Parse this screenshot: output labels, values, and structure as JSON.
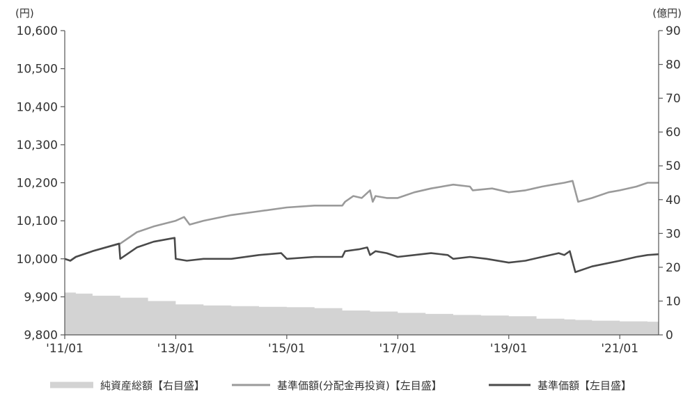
{
  "chart_data": {
    "type": "line",
    "title": "",
    "left_axis": {
      "unit": "(円)",
      "ylim": [
        9800,
        10600
      ],
      "ticks": [
        9800,
        9900,
        10000,
        10100,
        10200,
        10300,
        10400,
        10500,
        10600
      ],
      "tick_labels": [
        "9,800",
        "9,900",
        "10,000",
        "10,100",
        "10,200",
        "10,300",
        "10,400",
        "10,500",
        "10,600"
      ]
    },
    "right_axis": {
      "unit": "(億円)",
      "ylim": [
        0,
        90
      ],
      "ticks": [
        0,
        10,
        20,
        30,
        40,
        50,
        60,
        70,
        80,
        90
      ],
      "tick_labels": [
        "0",
        "10",
        "20",
        "30",
        "40",
        "50",
        "60",
        "70",
        "80",
        "90"
      ]
    },
    "x_axis": {
      "range": [
        2011.0,
        2021.7
      ],
      "ticks": [
        2011,
        2013,
        2015,
        2017,
        2019,
        2021
      ],
      "tick_labels": [
        "'11/01",
        "'13/01",
        "'15/01",
        "'17/01",
        "'19/01",
        "'21/01"
      ]
    },
    "grid": false,
    "legend_position": "bottom",
    "series": [
      {
        "name": "純資産総額【右目盛】",
        "type": "area",
        "axis": "right",
        "color": "#d3d3d3",
        "x": [
          2011.0,
          2011.2,
          2011.5,
          2012.0,
          2012.5,
          2013.0,
          2013.5,
          2014.0,
          2014.5,
          2015.0,
          2015.5,
          2016.0,
          2016.5,
          2017.0,
          2017.5,
          2018.0,
          2018.5,
          2019.0,
          2019.5,
          2020.0,
          2020.2,
          2020.5,
          2021.0,
          2021.5,
          2021.7
        ],
        "values": [
          12.5,
          12.2,
          11.6,
          11.0,
          10.0,
          9.0,
          8.7,
          8.5,
          8.3,
          8.2,
          7.9,
          7.2,
          6.9,
          6.5,
          6.2,
          5.9,
          5.7,
          5.5,
          4.8,
          4.6,
          4.4,
          4.2,
          4.0,
          3.9,
          3.8
        ]
      },
      {
        "name": "基準価額(分配金再投資)【左目盛】",
        "type": "line",
        "axis": "left",
        "color": "#9a9a9a",
        "x": [
          2011.0,
          2011.1,
          2011.2,
          2011.5,
          2012.0,
          2012.3,
          2012.6,
          2013.0,
          2013.15,
          2013.25,
          2013.5,
          2014.0,
          2014.5,
          2015.0,
          2015.5,
          2016.0,
          2016.05,
          2016.2,
          2016.35,
          2016.5,
          2016.55,
          2016.6,
          2016.8,
          2017.0,
          2017.3,
          2017.6,
          2018.0,
          2018.3,
          2018.35,
          2018.7,
          2019.0,
          2019.3,
          2019.6,
          2019.8,
          2020.0,
          2020.15,
          2020.25,
          2020.5,
          2020.8,
          2021.0,
          2021.3,
          2021.5,
          2021.7
        ],
        "values": [
          10000,
          9995,
          10005,
          10020,
          10040,
          10070,
          10085,
          10100,
          10110,
          10090,
          10100,
          10115,
          10125,
          10135,
          10140,
          10140,
          10150,
          10165,
          10160,
          10180,
          10150,
          10165,
          10160,
          10160,
          10175,
          10185,
          10195,
          10190,
          10180,
          10185,
          10175,
          10180,
          10190,
          10195,
          10200,
          10205,
          10150,
          10160,
          10175,
          10180,
          10190,
          10200,
          10200
        ]
      },
      {
        "name": "基準価額【左目盛】",
        "type": "line",
        "axis": "left",
        "color": "#4a4a4a",
        "x": [
          2011.0,
          2011.1,
          2011.2,
          2011.5,
          2011.98,
          2012.0,
          2012.3,
          2012.6,
          2012.98,
          2013.0,
          2013.2,
          2013.5,
          2014.0,
          2014.5,
          2014.9,
          2015.0,
          2015.5,
          2016.0,
          2016.05,
          2016.3,
          2016.45,
          2016.5,
          2016.6,
          2016.8,
          2017.0,
          2017.3,
          2017.6,
          2017.9,
          2018.0,
          2018.3,
          2018.6,
          2019.0,
          2019.3,
          2019.6,
          2019.9,
          2020.0,
          2020.1,
          2020.2,
          2020.5,
          2021.0,
          2021.3,
          2021.5,
          2021.7
        ],
        "values": [
          10000,
          9995,
          10005,
          10020,
          10040,
          10000,
          10030,
          10045,
          10055,
          10000,
          9995,
          10000,
          10000,
          10010,
          10015,
          10000,
          10005,
          10005,
          10020,
          10025,
          10030,
          10010,
          10020,
          10015,
          10005,
          10010,
          10015,
          10010,
          10000,
          10005,
          10000,
          9990,
          9995,
          10005,
          10015,
          10010,
          10020,
          9965,
          9980,
          9995,
          10005,
          10010,
          10012
        ]
      }
    ]
  }
}
